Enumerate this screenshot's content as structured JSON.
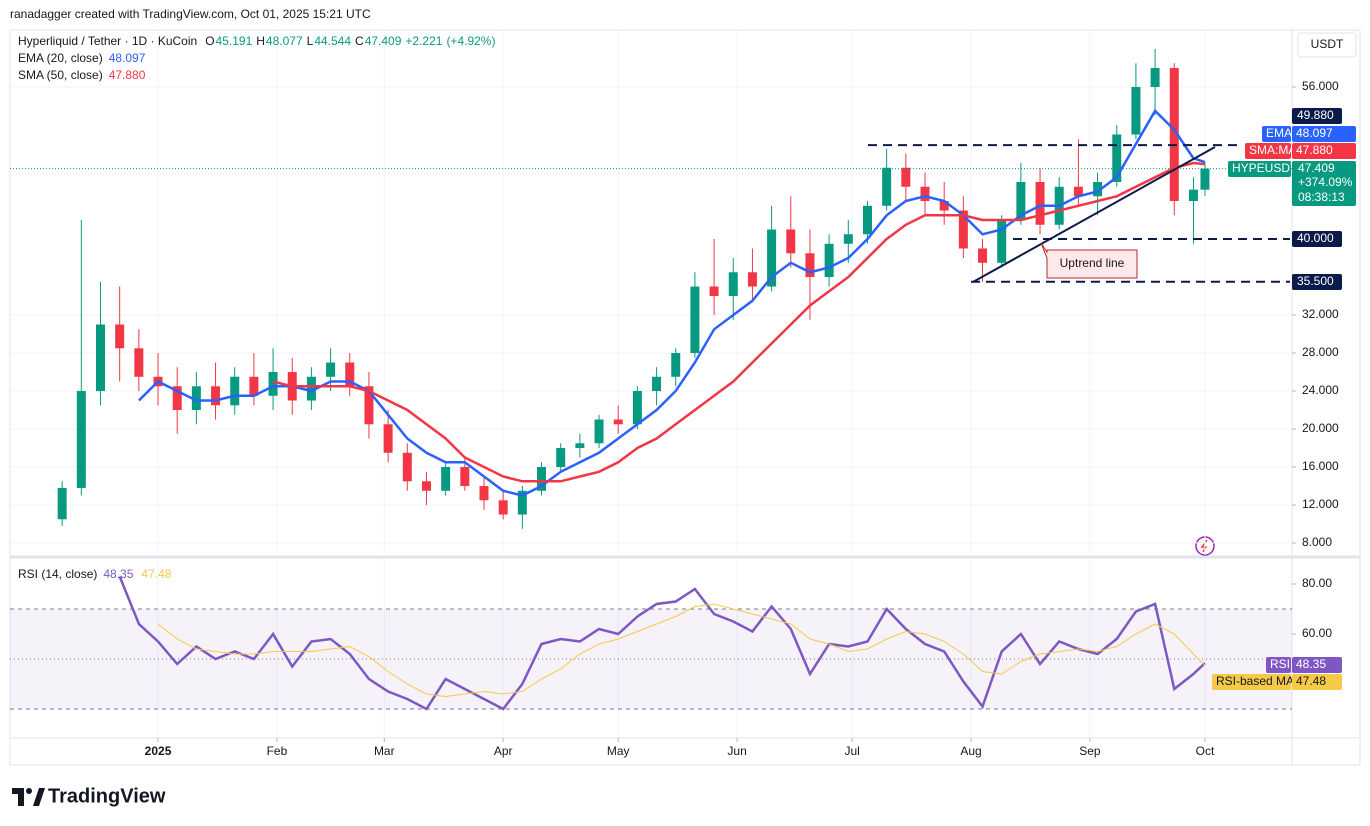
{
  "header": {
    "credit": "ranadagger created with TradingView.com, Oct 01, 2025 15:21 UTC",
    "currency": "USDT",
    "brand": "TradingView"
  },
  "chart_data": [
    {
      "type": "candlestick",
      "title": "Hyperliquid / Tether · 1D · KuCoin",
      "symbol": "HYPEUSDT",
      "ohlc_labels": [
        "O",
        "H",
        "L",
        "C"
      ],
      "change": {
        "value": 2.221,
        "label": "+2.221"
      },
      "change_pct": {
        "value": 4.92,
        "label": "(+4.92%)"
      },
      "total_change": {
        "value": 374.09,
        "label": "+374.09%"
      },
      "countdown": "08:38:13",
      "up_color": "#089981",
      "down_color": "#f23645",
      "x": [
        -25,
        -20,
        -15,
        -10,
        -5,
        0,
        5,
        10,
        15,
        20,
        25,
        30,
        35,
        40,
        45,
        50,
        55,
        60,
        65,
        70,
        75,
        80,
        85,
        90,
        95,
        100,
        105,
        110,
        115,
        120,
        125,
        130,
        135,
        140,
        145,
        150,
        155,
        160,
        165,
        170,
        175,
        180,
        185,
        190,
        195,
        200,
        205,
        210,
        215,
        220,
        225,
        230,
        235,
        240,
        245,
        250,
        255,
        260,
        265,
        270,
        273
      ],
      "open": [
        10.5,
        13.8,
        24,
        31,
        28.5,
        25.5,
        24.5,
        22,
        24.5,
        22.5,
        25.5,
        23.5,
        26,
        23,
        25.5,
        27,
        24.5,
        20.5,
        17.5,
        14.5,
        13.5,
        16,
        14,
        12.5,
        11,
        13.5,
        16,
        18,
        18.5,
        21,
        20.5,
        24,
        25.5,
        28,
        35,
        34,
        36.5,
        35,
        41,
        38.5,
        36,
        39.5,
        40.5,
        43.5,
        47.5,
        45.5,
        44,
        43,
        39,
        37.5,
        42,
        46,
        41.5,
        45.5,
        44.5,
        46,
        51,
        56,
        58,
        44,
        45.191
      ],
      "high": [
        14.5,
        42,
        35.5,
        35,
        30.5,
        28,
        26.5,
        26,
        27,
        26.5,
        28,
        28.5,
        27.5,
        26.5,
        28.5,
        28,
        26,
        22,
        18.5,
        15.5,
        16.5,
        17,
        15,
        13.5,
        14,
        16.5,
        18.5,
        19.5,
        21.5,
        22.5,
        24.5,
        26.5,
        28.5,
        36.5,
        40,
        38,
        39,
        43.5,
        44.5,
        41,
        40.5,
        42,
        44,
        49.5,
        49,
        47,
        46,
        44.5,
        40,
        42.5,
        48,
        47.5,
        46.5,
        50.5,
        47,
        52,
        58.5,
        60,
        58.5,
        46.5,
        48.077
      ],
      "low": [
        9.8,
        13,
        22.5,
        25,
        24,
        22.5,
        19.5,
        20.5,
        21,
        21.5,
        22.5,
        22,
        21.5,
        22,
        24,
        23.5,
        19,
        16.5,
        13.5,
        12,
        13,
        13.5,
        11.5,
        10.5,
        9.5,
        13,
        15.5,
        17,
        18,
        19.5,
        20,
        22.5,
        24.5,
        27.5,
        32,
        31.5,
        33.5,
        34.5,
        37,
        31.5,
        35,
        37.5,
        39.5,
        43,
        44,
        42.5,
        41.5,
        38,
        35.5,
        37,
        41.5,
        40.5,
        41,
        43.5,
        42.5,
        45.5,
        50.5,
        53,
        42.5,
        39.5,
        44.544
      ],
      "close": [
        13.8,
        24,
        31,
        28.5,
        25.5,
        24.5,
        22,
        24.5,
        22.5,
        25.5,
        23.5,
        26,
        23,
        25.5,
        27,
        24.5,
        20.5,
        17.5,
        14.5,
        13.5,
        16,
        14,
        12.5,
        11,
        13.5,
        16,
        18,
        18.5,
        21,
        20.5,
        24,
        25.5,
        28,
        35,
        34,
        36.5,
        35,
        41,
        38.5,
        36,
        39.5,
        40.5,
        43.5,
        47.5,
        45.5,
        44,
        43,
        39,
        37.5,
        42,
        46,
        41.5,
        45.5,
        44.5,
        46,
        51,
        56,
        58,
        44,
        45.2,
        47.409
      ],
      "series": [
        {
          "name": "EMA",
          "legend": "EMA (20, close)",
          "color": "#2962ff",
          "values": [
            null,
            null,
            null,
            null,
            23,
            25,
            24,
            23,
            23,
            23.5,
            23.5,
            24.5,
            24.5,
            24,
            25,
            25,
            24,
            21.5,
            19,
            17.5,
            16.5,
            16.5,
            15,
            13.5,
            13,
            14,
            15.5,
            16.5,
            17.5,
            19,
            20.5,
            22,
            24,
            27,
            30.5,
            32,
            33.5,
            36,
            37.5,
            36.5,
            37,
            38,
            40,
            42.5,
            44,
            44.5,
            44,
            42.5,
            40.5,
            41,
            42.5,
            43.5,
            43.5,
            44.5,
            45,
            46.5,
            50,
            53.5,
            51.5,
            48.5,
            48.097
          ]
        },
        {
          "name": "SMA:MA",
          "legend": "SMA (50, close)",
          "color": "#f23645",
          "values": [
            null,
            null,
            null,
            null,
            null,
            null,
            null,
            null,
            null,
            null,
            null,
            25,
            24.5,
            24.5,
            24.5,
            24.5,
            24,
            23,
            22,
            20.5,
            19,
            17,
            16,
            15,
            14.5,
            14.5,
            14.5,
            15,
            15.5,
            16.5,
            18,
            19,
            20.5,
            22,
            23.5,
            25,
            27,
            29,
            31,
            33,
            34.5,
            36,
            38,
            40,
            41.5,
            42.5,
            42.5,
            42.5,
            42,
            42,
            42,
            42.5,
            43,
            43.5,
            44,
            44.5,
            45.5,
            46.5,
            47.5,
            48,
            47.88
          ],
          "value_labels": {
            "60": "47.880"
          }
        }
      ],
      "levels": [
        {
          "value": 49.88,
          "label": "49.880"
        },
        {
          "value": 40,
          "label": "40.000"
        },
        {
          "value": 35.5,
          "label": "35.500"
        }
      ],
      "annotations": [
        "Uptrend line"
      ],
      "xlim": [
        -38.6,
        295.7
      ],
      "xticks": [
        {
          "value": 0,
          "label": "2025"
        },
        {
          "value": 31,
          "label": "Feb"
        },
        {
          "value": 59,
          "label": "Mar"
        },
        {
          "value": 90,
          "label": "Apr"
        },
        {
          "value": 120,
          "label": "May"
        },
        {
          "value": 151,
          "label": "Jun"
        },
        {
          "value": 181,
          "label": "Jul"
        },
        {
          "value": 212,
          "label": "Aug"
        },
        {
          "value": 243,
          "label": "Sep"
        },
        {
          "value": 273,
          "label": "Oct"
        }
      ],
      "ylim": [
        6.74,
        62
      ],
      "yticks": [
        {
          "value": 8,
          "label": "8.000"
        },
        {
          "value": 12,
          "label": "12.000"
        },
        {
          "value": 16,
          "label": "16.000"
        },
        {
          "value": 20,
          "label": "20.000"
        },
        {
          "value": 24,
          "label": "24.000"
        },
        {
          "value": 28,
          "label": "28.000"
        },
        {
          "value": 32,
          "label": "32.000"
        },
        {
          "value": 56,
          "label": "56.000"
        }
      ],
      "grid": true
    },
    {
      "type": "line",
      "title": "RSI (14, close)",
      "series": [
        {
          "name": "RSI",
          "color": "#7e57c2",
          "values": [
            null,
            null,
            null,
            83,
            64,
            57,
            48,
            55,
            50,
            53,
            50,
            60,
            47,
            57,
            58,
            52,
            42,
            37,
            34,
            30,
            42,
            38,
            34,
            30,
            40,
            56,
            58,
            57,
            62,
            60,
            67,
            72,
            73,
            78,
            68,
            65,
            61,
            71,
            62,
            44,
            56,
            55,
            57,
            70,
            62,
            56,
            53,
            41,
            31,
            53,
            60,
            48,
            57,
            54,
            52,
            58,
            69,
            72,
            38,
            44,
            48.35
          ]
        },
        {
          "name": "RSI-based MA",
          "color": "#f7c948",
          "values": [
            null,
            null,
            null,
            null,
            null,
            64,
            58,
            54,
            53,
            52,
            52,
            53,
            53,
            53,
            54,
            55,
            51,
            45,
            40,
            36,
            35,
            36,
            37,
            36,
            37,
            42,
            46,
            52,
            56,
            58,
            61,
            64,
            67,
            71,
            72,
            70,
            68,
            66,
            64,
            58,
            56,
            53,
            54,
            58,
            61,
            60,
            57,
            52,
            45,
            44,
            49,
            52,
            53,
            54,
            53,
            55,
            60,
            64,
            60,
            52,
            47.48
          ]
        }
      ],
      "ylim": [
        18.4,
        89.6
      ],
      "yticks": [
        {
          "value": 60,
          "label": "60.00"
        },
        {
          "value": 80,
          "label": "80.00"
        }
      ],
      "bands": [
        70,
        50,
        30
      ],
      "band_color": "#7e57c2"
    }
  ]
}
